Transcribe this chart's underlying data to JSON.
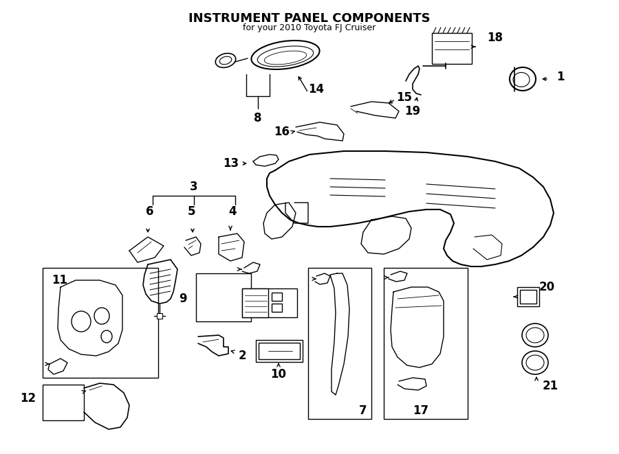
{
  "title": "INSTRUMENT PANEL COMPONENTS",
  "subtitle": "for your 2010 Toyota FJ Cruiser",
  "bg_color": "#ffffff",
  "line_color": "#000000",
  "text_color": "#000000",
  "figsize": [
    9.0,
    6.61
  ],
  "dpi": 100
}
